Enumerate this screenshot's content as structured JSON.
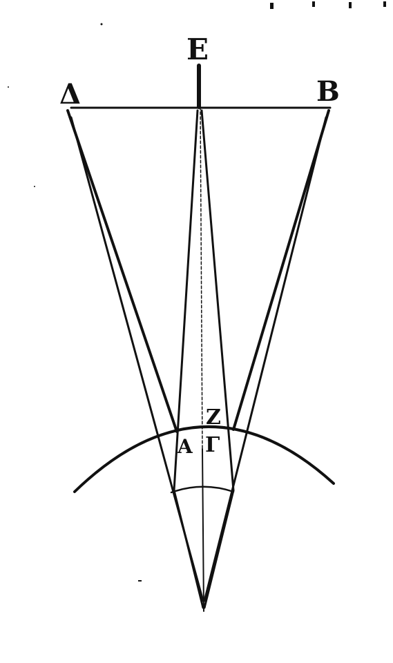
{
  "diagram": {
    "stroke_color": "#111111",
    "background": "#ffffff",
    "labels": {
      "E": "E",
      "Delta": "Δ",
      "B": "B",
      "Z": "Z",
      "A": "A",
      "Gamma": "Γ"
    }
  }
}
